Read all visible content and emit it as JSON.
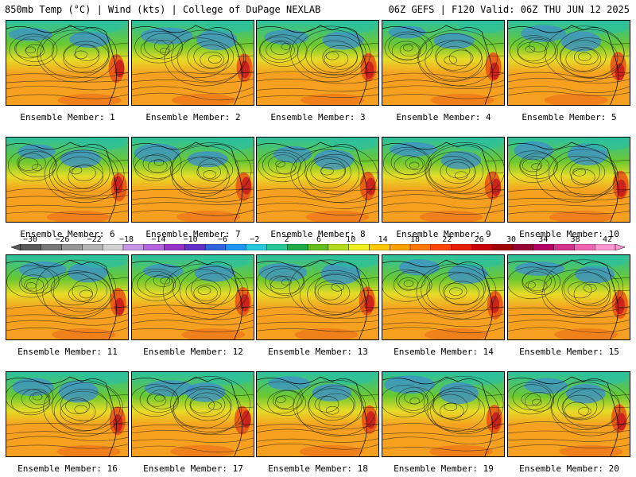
{
  "header": {
    "left": "850mb Temp (°C) | Wind (kts) | College of DuPage NEXLAB",
    "right": "06Z GEFS | F120 Valid: 06Z THU JUN 12 2025"
  },
  "members": [
    {
      "label": "Ensemble Member: 1"
    },
    {
      "label": "Ensemble Member: 2"
    },
    {
      "label": "Ensemble Member: 3"
    },
    {
      "label": "Ensemble Member: 4"
    },
    {
      "label": "Ensemble Member: 5"
    },
    {
      "label": "Ensemble Member: 6"
    },
    {
      "label": "Ensemble Member: 7"
    },
    {
      "label": "Ensemble Member: 8"
    },
    {
      "label": "Ensemble Member: 9"
    },
    {
      "label": "Ensemble Member: 10"
    },
    {
      "label": "Ensemble Member: 11"
    },
    {
      "label": "Ensemble Member: 12"
    },
    {
      "label": "Ensemble Member: 13"
    },
    {
      "label": "Ensemble Member: 14"
    },
    {
      "label": "Ensemble Member: 15"
    },
    {
      "label": "Ensemble Member: 16"
    },
    {
      "label": "Ensemble Member: 17"
    },
    {
      "label": "Ensemble Member: 18"
    },
    {
      "label": "Ensemble Member: 19"
    },
    {
      "label": "Ensemble Member: 20"
    }
  ],
  "colorbar": {
    "ticks": [
      "−30",
      "−26",
      "−22",
      "−18",
      "−14",
      "−10",
      "−6",
      "−2",
      "2",
      "6",
      "10",
      "14",
      "18",
      "22",
      "26",
      "30",
      "34",
      "38",
      "42"
    ],
    "colors": [
      "#5a5a5a",
      "#787878",
      "#969696",
      "#b4b4b4",
      "#d2d2d2",
      "#c896e6",
      "#b464dc",
      "#9632c8",
      "#6432c8",
      "#3264dc",
      "#1e96f0",
      "#28c8dc",
      "#28c896",
      "#1eaa46",
      "#64be1e",
      "#b4dc1e",
      "#f0f01e",
      "#ffc800",
      "#ffa000",
      "#ff7800",
      "#ff4600",
      "#e61e00",
      "#c80000",
      "#a00000",
      "#960032",
      "#b40064",
      "#d2328c",
      "#f064b4",
      "#ff96d2"
    ],
    "field_colors": {
      "cold": "#3c8cd2",
      "cool": "#2cc0a0",
      "mild": "#6cc830",
      "warm_yellow": "#e6dc28",
      "warm": "#f5a020",
      "hot": "#e65014",
      "very_hot": "#c81e1e",
      "land_lines": "#000000"
    }
  }
}
